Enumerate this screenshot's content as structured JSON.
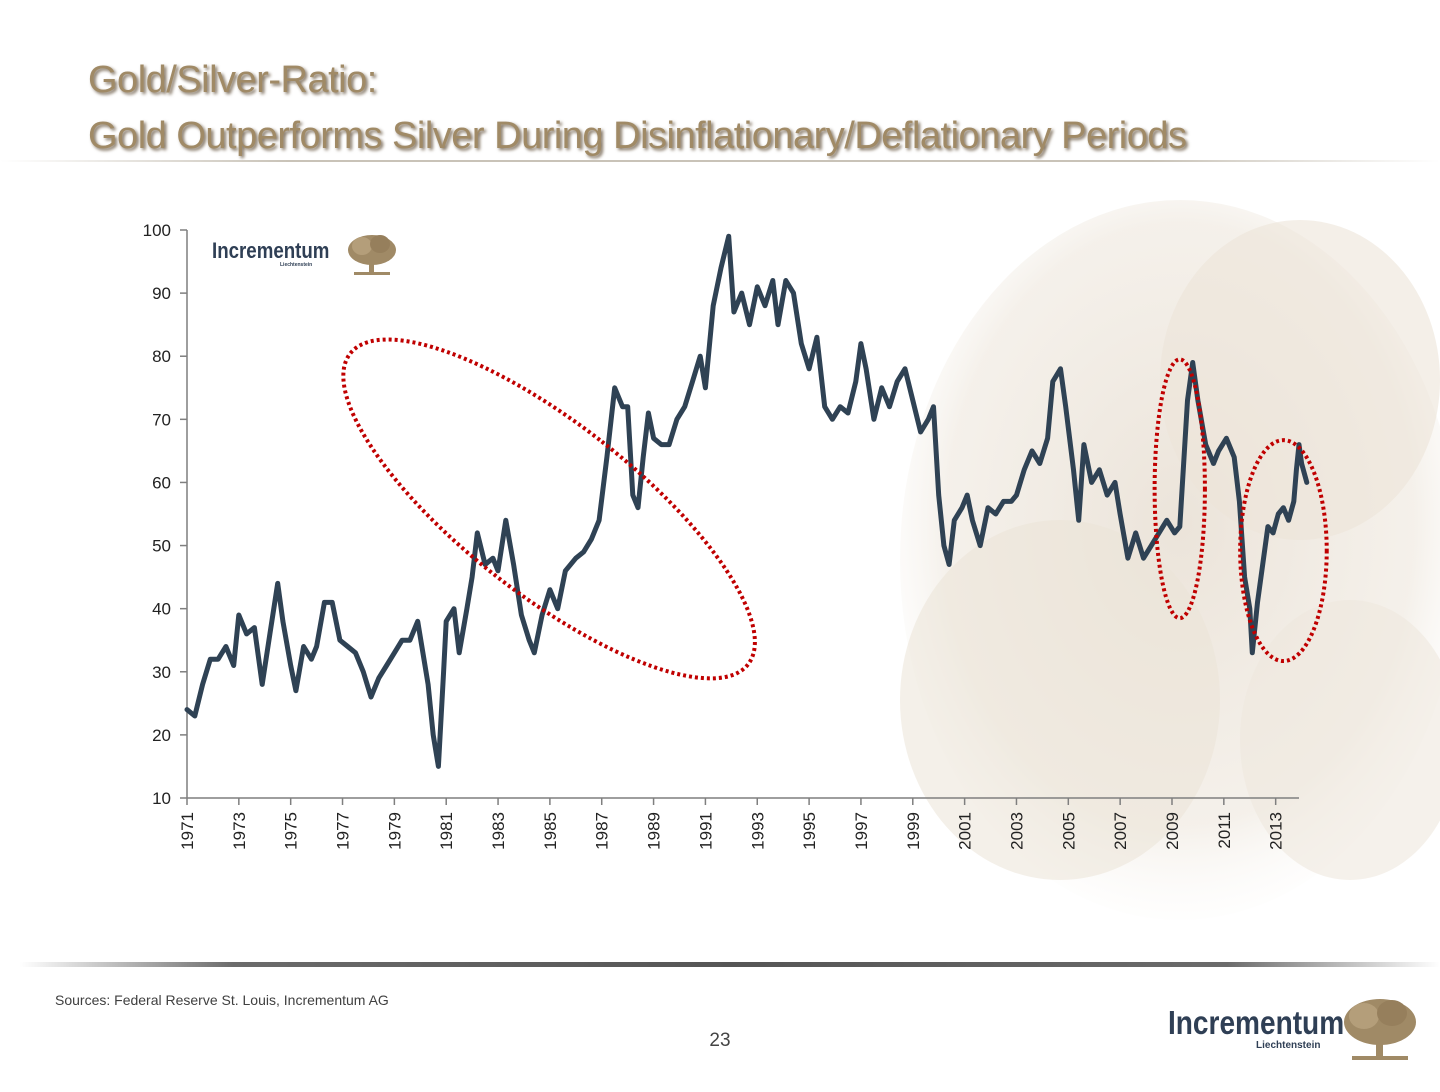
{
  "header": {
    "title_line1": "Gold/Silver-Ratio:",
    "title_line2": "Gold Outperforms Silver During Disinflationary/Deflationary Periods"
  },
  "logo": {
    "name": "Incrementum",
    "sub": "Liechtenstein"
  },
  "footer": {
    "source": "Sources: Federal Reserve St. Louis, Incrementum AG",
    "page_number": "23"
  },
  "colors": {
    "line": "#2f4254",
    "ellipse": "#c00000",
    "title": "#a08a66",
    "logo": "#2f3f55",
    "tree": "#a08a66"
  },
  "chart_data": {
    "type": "line",
    "title": "",
    "xlabel": "",
    "ylabel": "",
    "ylim": [
      10,
      100
    ],
    "yticks": [
      10,
      20,
      30,
      40,
      50,
      60,
      70,
      80,
      90,
      100
    ],
    "xlim": [
      1971,
      2013.9
    ],
    "xticks": [
      "1971",
      "1973",
      "1975",
      "1977",
      "1979",
      "1981",
      "1983",
      "1985",
      "1987",
      "1989",
      "1991",
      "1993",
      "1995",
      "1997",
      "1999",
      "2001",
      "2003",
      "2005",
      "2007",
      "2009",
      "2011",
      "2013"
    ],
    "grid": false,
    "series": [
      {
        "name": "",
        "points": [
          [
            1971.0,
            24
          ],
          [
            1971.3,
            23
          ],
          [
            1971.6,
            28
          ],
          [
            1971.9,
            32
          ],
          [
            1972.2,
            32
          ],
          [
            1972.5,
            34
          ],
          [
            1972.8,
            31
          ],
          [
            1973.0,
            39
          ],
          [
            1973.3,
            36
          ],
          [
            1973.6,
            37
          ],
          [
            1973.9,
            28
          ],
          [
            1974.2,
            36
          ],
          [
            1974.5,
            44
          ],
          [
            1974.7,
            38
          ],
          [
            1975.0,
            31
          ],
          [
            1975.2,
            27
          ],
          [
            1975.5,
            34
          ],
          [
            1975.8,
            32
          ],
          [
            1976.0,
            34
          ],
          [
            1976.3,
            41
          ],
          [
            1976.6,
            41
          ],
          [
            1976.9,
            35
          ],
          [
            1977.2,
            34
          ],
          [
            1977.5,
            33
          ],
          [
            1977.8,
            30
          ],
          [
            1978.1,
            26
          ],
          [
            1978.4,
            29
          ],
          [
            1978.7,
            31
          ],
          [
            1979.0,
            33
          ],
          [
            1979.3,
            35
          ],
          [
            1979.6,
            35
          ],
          [
            1979.9,
            38
          ],
          [
            1980.1,
            33
          ],
          [
            1980.3,
            28
          ],
          [
            1980.5,
            20
          ],
          [
            1980.7,
            15
          ],
          [
            1980.9,
            30
          ],
          [
            1981.0,
            38
          ],
          [
            1981.3,
            40
          ],
          [
            1981.5,
            33
          ],
          [
            1981.8,
            40
          ],
          [
            1982.0,
            45
          ],
          [
            1982.2,
            52
          ],
          [
            1982.5,
            47
          ],
          [
            1982.8,
            48
          ],
          [
            1983.0,
            46
          ],
          [
            1983.3,
            54
          ],
          [
            1983.6,
            47
          ],
          [
            1983.9,
            39
          ],
          [
            1984.2,
            35
          ],
          [
            1984.4,
            33
          ],
          [
            1984.7,
            39
          ],
          [
            1985.0,
            43
          ],
          [
            1985.3,
            40
          ],
          [
            1985.6,
            46
          ],
          [
            1986.0,
            48
          ],
          [
            1986.3,
            49
          ],
          [
            1986.6,
            51
          ],
          [
            1986.9,
            54
          ],
          [
            1987.2,
            64
          ],
          [
            1987.5,
            75
          ],
          [
            1987.8,
            72
          ],
          [
            1988.0,
            72
          ],
          [
            1988.2,
            58
          ],
          [
            1988.4,
            56
          ],
          [
            1988.6,
            64
          ],
          [
            1988.8,
            71
          ],
          [
            1989.0,
            67
          ],
          [
            1989.3,
            66
          ],
          [
            1989.6,
            66
          ],
          [
            1989.9,
            70
          ],
          [
            1990.2,
            72
          ],
          [
            1990.5,
            76
          ],
          [
            1990.8,
            80
          ],
          [
            1991.0,
            75
          ],
          [
            1991.3,
            88
          ],
          [
            1991.6,
            94
          ],
          [
            1991.9,
            99
          ],
          [
            1992.1,
            87
          ],
          [
            1992.4,
            90
          ],
          [
            1992.7,
            85
          ],
          [
            1993.0,
            91
          ],
          [
            1993.3,
            88
          ],
          [
            1993.6,
            92
          ],
          [
            1993.8,
            85
          ],
          [
            1994.1,
            92
          ],
          [
            1994.4,
            90
          ],
          [
            1994.7,
            82
          ],
          [
            1995.0,
            78
          ],
          [
            1995.3,
            83
          ],
          [
            1995.6,
            72
          ],
          [
            1995.9,
            70
          ],
          [
            1996.2,
            72
          ],
          [
            1996.5,
            71
          ],
          [
            1996.8,
            76
          ],
          [
            1997.0,
            82
          ],
          [
            1997.2,
            78
          ],
          [
            1997.5,
            70
          ],
          [
            1997.8,
            75
          ],
          [
            1998.1,
            72
          ],
          [
            1998.4,
            76
          ],
          [
            1998.7,
            78
          ],
          [
            1999.0,
            73
          ],
          [
            1999.3,
            68
          ],
          [
            1999.6,
            70
          ],
          [
            1999.8,
            72
          ],
          [
            2000.0,
            58
          ],
          [
            2000.2,
            50
          ],
          [
            2000.4,
            47
          ],
          [
            2000.6,
            54
          ],
          [
            2000.9,
            56
          ],
          [
            2001.1,
            58
          ],
          [
            2001.3,
            54
          ],
          [
            2001.6,
            50
          ],
          [
            2001.9,
            56
          ],
          [
            2002.2,
            55
          ],
          [
            2002.5,
            57
          ],
          [
            2002.8,
            57
          ],
          [
            2003.0,
            58
          ],
          [
            2003.3,
            62
          ],
          [
            2003.6,
            65
          ],
          [
            2003.9,
            63
          ],
          [
            2004.2,
            67
          ],
          [
            2004.4,
            76
          ],
          [
            2004.7,
            78
          ],
          [
            2004.9,
            72
          ],
          [
            2005.2,
            62
          ],
          [
            2005.4,
            54
          ],
          [
            2005.6,
            66
          ],
          [
            2005.9,
            60
          ],
          [
            2006.2,
            62
          ],
          [
            2006.5,
            58
          ],
          [
            2006.8,
            60
          ],
          [
            2007.0,
            55
          ],
          [
            2007.3,
            48
          ],
          [
            2007.6,
            52
          ],
          [
            2007.9,
            48
          ],
          [
            2008.2,
            50
          ],
          [
            2008.5,
            52
          ],
          [
            2008.8,
            54
          ],
          [
            2009.1,
            52
          ],
          [
            2009.3,
            53
          ],
          [
            2009.6,
            73
          ],
          [
            2009.8,
            79
          ],
          [
            2010.0,
            73
          ],
          [
            2010.3,
            66
          ],
          [
            2010.6,
            63
          ],
          [
            2010.8,
            65
          ],
          [
            2011.1,
            67
          ],
          [
            2011.4,
            64
          ],
          [
            2011.6,
            57
          ],
          [
            2011.8,
            45
          ],
          [
            2012.0,
            40
          ],
          [
            2012.1,
            33
          ],
          [
            2012.3,
            41
          ],
          [
            2012.5,
            47
          ],
          [
            2012.7,
            53
          ],
          [
            2012.9,
            52
          ],
          [
            2013.1,
            55
          ],
          [
            2013.3,
            56
          ],
          [
            2013.5,
            54
          ],
          [
            2013.7,
            57
          ],
          [
            2013.8,
            62
          ],
          [
            2013.9,
            66
          ],
          [
            2014.0,
            63
          ],
          [
            2014.2,
            60
          ]
        ]
      }
    ],
    "annotations": [
      {
        "type": "ellipse",
        "cx": 1984.97,
        "cy": 55.8,
        "rx_years": 3.3,
        "ry": 40,
        "angle": -52
      },
      {
        "type": "ellipse",
        "cx": 2009.3,
        "cy": 59,
        "rx_years": 0.97,
        "ry": 20.5,
        "angle": 0
      },
      {
        "type": "ellipse",
        "cx": 2013.3,
        "cy": 49.2,
        "rx_years": 1.67,
        "ry": 17.5,
        "angle": 0
      }
    ]
  }
}
